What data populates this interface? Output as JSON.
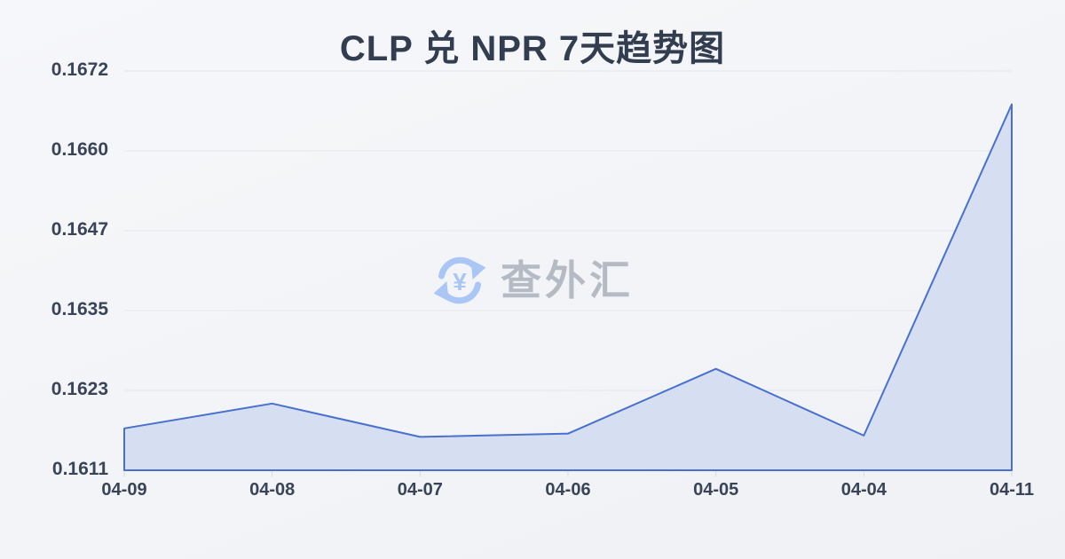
{
  "watermark": {
    "text": "查外汇",
    "icon": "yuan-refresh-icon",
    "icon_color": "#a9c6f5",
    "text_color": "#b5bbc5"
  },
  "chart_data": {
    "type": "area",
    "title": "CLP 兑 NPR 7天趋势图",
    "categories": [
      "04-09",
      "04-08",
      "04-07",
      "04-06",
      "04-05",
      "04-04",
      "04-11"
    ],
    "values": [
      0.16174,
      0.16212,
      0.16161,
      0.16166,
      0.16265,
      0.16163,
      0.16669
    ],
    "yticks": [
      "0.1672",
      "0.1660",
      "0.1647",
      "0.1635",
      "0.1623",
      "0.1611"
    ],
    "ylim": [
      0.1611,
      0.1672
    ],
    "xlabel": "",
    "ylabel": "",
    "grid": true,
    "legend": "none",
    "line_color": "#4a70cd",
    "fill_color": "#d6def2",
    "grid_color": "#e3e6ec",
    "tick_color": "#d5dae1",
    "axis_label_color": "#3a4457",
    "title_color": "#333d50"
  }
}
